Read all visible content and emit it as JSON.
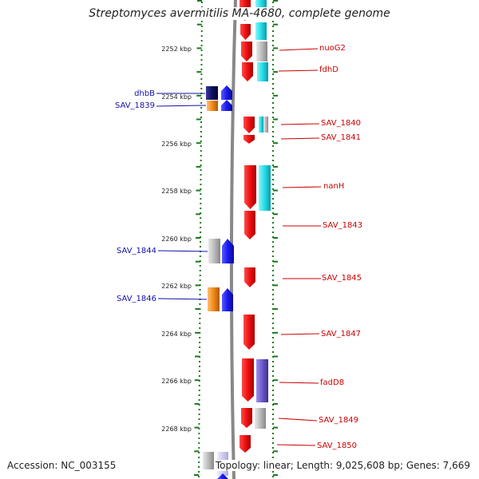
{
  "title": "Streptomyces avermitilis MA-4680, complete genome",
  "footer": {
    "accession": "Accession: NC_003155",
    "topology": "Topology: linear; Length: 9,025,608 bp; Genes: 7,669"
  },
  "colors": {
    "red": "#ee1111",
    "cyan": "#22dde8",
    "gray": "#bbbbbb",
    "navy": "#101060",
    "blue": "#1a1aee",
    "orange": "#f08a1a",
    "purple": "#6a5acd",
    "tick": "#1a7a1a",
    "axis": "#888888",
    "label_right": "#cc0000",
    "label_left": "#1010aa"
  },
  "scale": {
    "unit": "kbp",
    "ticks": [
      "2252 kbp",
      "2254 kbp",
      "2256 kbp",
      "2258 kbp",
      "2260 kbp",
      "2262 kbp",
      "2264 kbp",
      "2266 kbp",
      "2268 kbp"
    ]
  },
  "genes_right": [
    {
      "label": "nuoG2"
    },
    {
      "label": "fdhD"
    },
    {
      "label": "SAV_1840"
    },
    {
      "label": "SAV_1841"
    },
    {
      "label": "nanH"
    },
    {
      "label": "SAV_1843"
    },
    {
      "label": "SAV_1845"
    },
    {
      "label": "SAV_1847"
    },
    {
      "label": "fadD8"
    },
    {
      "label": "SAV_1849"
    },
    {
      "label": "SAV_1850"
    }
  ],
  "genes_left": [
    {
      "label": "dhbB"
    },
    {
      "label": "SAV_1839"
    },
    {
      "label": "SAV_1844"
    },
    {
      "label": "SAV_1846"
    }
  ]
}
